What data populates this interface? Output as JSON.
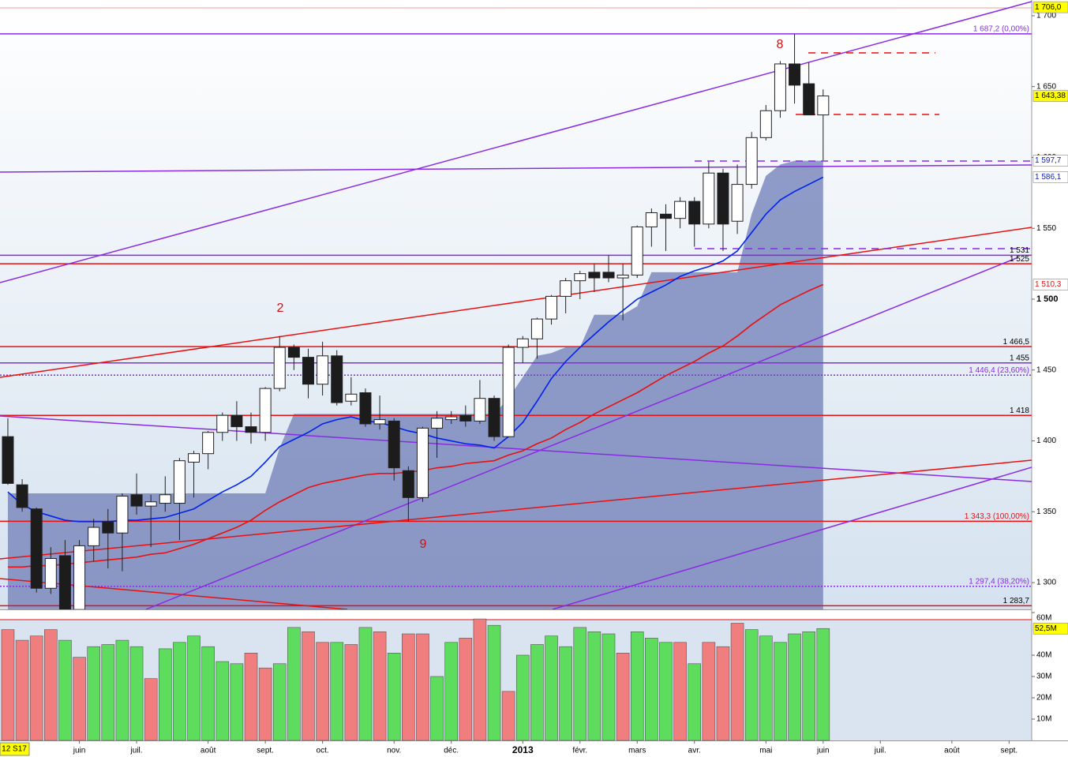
{
  "chart_data": [
    {
      "type": "candlestick",
      "categories": [
        null,
        null,
        null,
        null,
        null,
        null,
        null,
        null,
        null,
        null,
        null,
        null,
        null,
        null,
        null,
        null,
        null,
        null,
        null,
        null,
        null,
        null,
        null,
        null,
        null,
        null,
        null,
        null,
        null,
        null,
        null,
        null,
        null,
        null,
        null,
        null,
        null,
        null,
        null,
        null,
        null,
        null,
        null,
        null,
        null,
        null,
        null,
        null,
        null,
        null,
        null,
        null,
        null,
        null,
        null,
        null,
        null,
        null
      ],
      "open": [
        1403,
        1369,
        1352,
        1296,
        1319,
        1281,
        1326,
        1343,
        1335,
        1362,
        1354,
        1356,
        1356,
        1385,
        1391,
        1406,
        1418,
        1410,
        1406,
        1437,
        1466,
        1459,
        1440,
        1460,
        1428,
        1434,
        1412,
        1414,
        1379,
        1360,
        1409,
        1415,
        1418,
        1414,
        1430,
        1403,
        1466,
        1472,
        1486,
        1502,
        1513,
        1519,
        1519,
        1515,
        1517,
        1551,
        1560,
        1557,
        1569,
        1553,
        1589,
        1555,
        1581,
        1614,
        1633,
        1666,
        1652,
        1630
      ],
      "high": [
        1416,
        1373,
        1353,
        1325,
        1330,
        1330,
        1345,
        1352,
        1363,
        1377,
        1362,
        1375,
        1388,
        1393,
        1407,
        1420,
        1428,
        1420,
        1438,
        1474,
        1468,
        1465,
        1470,
        1464,
        1445,
        1437,
        1432,
        1416,
        1382,
        1410,
        1421,
        1421,
        1425,
        1443,
        1432,
        1468,
        1474,
        1487,
        1503,
        1515,
        1520,
        1525,
        1531,
        1525,
        1552,
        1564,
        1567,
        1572,
        1572,
        1597,
        1592,
        1595,
        1618,
        1637,
        1668,
        1687,
        1667,
        1648
      ],
      "low": [
        1369,
        1350,
        1293,
        1292,
        1281,
        1281,
        1315,
        1310,
        1308,
        1348,
        1325,
        1350,
        1330,
        1360,
        1380,
        1400,
        1400,
        1398,
        1400,
        1435,
        1450,
        1430,
        1432,
        1425,
        1425,
        1410,
        1408,
        1372,
        1343,
        1357,
        1388,
        1412,
        1410,
        1412,
        1400,
        1403,
        1455,
        1458,
        1482,
        1490,
        1500,
        1505,
        1512,
        1485,
        1515,
        1537,
        1534,
        1550,
        1537,
        1550,
        1534,
        1546,
        1578,
        1612,
        1628,
        1638,
        1630,
        1598
      ],
      "close": [
        1370,
        1353,
        1296,
        1317,
        1281,
        1326,
        1339,
        1335,
        1361,
        1354,
        1357,
        1362,
        1386,
        1391,
        1406,
        1418,
        1410,
        1406,
        1437,
        1466,
        1459,
        1440,
        1460,
        1427,
        1433,
        1412,
        1415,
        1381,
        1360,
        1409,
        1416,
        1417,
        1414,
        1430,
        1403,
        1466,
        1472,
        1486,
        1502,
        1513,
        1518,
        1515,
        1515,
        1517,
        1551,
        1561,
        1557,
        1569,
        1553,
        1589,
        1553,
        1581,
        1614,
        1633,
        1666,
        1651,
        1630,
        1643.38
      ],
      "up_color": "#ffffff",
      "down_color": "#1c1c1c",
      "stop": {
        "color": "#7d89bd",
        "values": [
          1363,
          1363,
          1363,
          1363,
          1363,
          1363,
          1363,
          1363,
          1363,
          1363,
          1363,
          1363,
          1363,
          1363,
          1363,
          1363,
          1363,
          1363,
          1363,
          1395,
          1419,
          1419,
          1419,
          1419,
          1419,
          1419,
          1419,
          1419,
          1419,
          1419,
          1419,
          1419,
          1419,
          1419,
          1419,
          1430,
          1445,
          1460,
          1462,
          1466,
          1466,
          1489,
          1489,
          1489,
          1495,
          1519,
          1519,
          1519,
          1519,
          1519,
          1519,
          1519,
          1560,
          1587,
          1595,
          1597.7,
          1597.7,
          1597.7
        ]
      },
      "lines": [
        {
          "color": "#0022ee",
          "values": [
            1364,
            1355,
            1350,
            1347,
            1344,
            1343,
            1343,
            1343,
            1344,
            1344,
            1345,
            1346,
            1349,
            1352,
            1358,
            1364,
            1369,
            1375,
            1385,
            1396,
            1401,
            1406,
            1412,
            1415,
            1417,
            1414,
            1413,
            1410,
            1407,
            1405,
            1402,
            1400,
            1398,
            1397,
            1395,
            1403,
            1413,
            1428,
            1444,
            1456,
            1466,
            1475,
            1484,
            1492,
            1500,
            1505,
            1510,
            1516,
            1520,
            1523,
            1527,
            1534,
            1547,
            1560,
            1570,
            1576,
            1581,
            1586.1
          ]
        },
        {
          "color": "#e81010",
          "values": [
            1311,
            1311,
            1312,
            1312,
            1313,
            1314,
            1315,
            1316,
            1317,
            1318,
            1320,
            1321,
            1324,
            1327,
            1331,
            1335,
            1339,
            1344,
            1351,
            1357,
            1362,
            1367,
            1370,
            1372,
            1374,
            1376,
            1377,
            1377,
            1378,
            1379,
            1381,
            1382,
            1384,
            1385,
            1386,
            1390,
            1393,
            1398,
            1402,
            1408,
            1413,
            1419,
            1424,
            1429,
            1434,
            1440,
            1446,
            1451,
            1456,
            1462,
            1467,
            1474,
            1482,
            1489,
            1496,
            1501,
            1506,
            1510.3
          ]
        }
      ],
      "levels": [
        {
          "value": 1687.2,
          "label": "1 687,2 (0,00%)",
          "color": "#8a2be2",
          "label_color": "#8a2be2",
          "style": "solid"
        },
        {
          "value": 1531,
          "label": "1 531",
          "color": "#8a2be2",
          "label_color": "#000000",
          "style": "solid"
        },
        {
          "value": 1525,
          "label": "1 525",
          "color": "#e81010",
          "label_color": "#000000",
          "style": "solid"
        },
        {
          "value": 1466.5,
          "label": "1 466,5",
          "color": "#e81010",
          "label_color": "#000000",
          "style": "solid"
        },
        {
          "value": 1455,
          "label": "1 455",
          "color": "#8a2be2",
          "label_color": "#000000",
          "style": "solid"
        },
        {
          "value": 1446.4,
          "label": "1 446,4 (23,60%)",
          "color": "#8a2be2",
          "label_color": "#8a2be2",
          "style": "dotted"
        },
        {
          "value": 1418,
          "label": "1 418",
          "color": "#e81010",
          "label_color": "#000000",
          "style": "solid"
        },
        {
          "value": 1343.3,
          "label": "1 343,3 (100,00%)",
          "color": "#e81010",
          "label_color": "#e81010",
          "style": "solid"
        },
        {
          "value": 1297.4,
          "label": "1 297,4 (38,20%)",
          "color": "#8a2be2",
          "label_color": "#8a2be2",
          "style": "dotted"
        },
        {
          "value": 1283.7,
          "label": "1 283,7",
          "color": "#e81010",
          "label_color": "#000000",
          "style": "solid"
        }
      ],
      "badges": [
        {
          "value": 1706,
          "label": "1 706,0",
          "fill": "#ffff00",
          "text_color": "#000000"
        },
        {
          "value": 1643.38,
          "label": "1 643,38",
          "fill": "#ffff00",
          "text_color": "#000000"
        },
        {
          "value": 1597.7,
          "label": "1 597,7",
          "fill": "#ffffff",
          "text_color": "#1020c0"
        },
        {
          "value": 1586.1,
          "label": "1 586,1",
          "fill": "#ffffff",
          "text_color": "#1020c0"
        },
        {
          "value": 1510.3,
          "label": "1 510,3",
          "fill": "#ffffff",
          "text_color": "#e81010"
        }
      ],
      "xlim": [
        -0.55,
        71.58
      ],
      "xticks": [
        {
          "value": 5,
          "label": "juin"
        },
        {
          "value": 9,
          "label": "juil."
        },
        {
          "value": 14,
          "label": "août"
        },
        {
          "value": 18,
          "label": "sept."
        },
        {
          "value": 22,
          "label": "oct."
        },
        {
          "value": 27,
          "label": "nov."
        },
        {
          "value": 31,
          "label": "déc."
        },
        {
          "value": 36,
          "label": "2013",
          "bold": true
        },
        {
          "value": 40,
          "label": "févr."
        },
        {
          "value": 44,
          "label": "mars"
        },
        {
          "value": 48,
          "label": "avr."
        },
        {
          "value": 53,
          "label": "mai"
        },
        {
          "value": 57,
          "label": "juin"
        },
        {
          "value": 61,
          "label": "juil."
        },
        {
          "value": 66,
          "label": "août"
        },
        {
          "value": 70,
          "label": "sept."
        }
      ],
      "ylim": [
        1281.1,
        1711.1
      ],
      "yticks": [
        {
          "value": 1300,
          "label": "1 300"
        },
        {
          "value": 1350,
          "label": "1 350"
        },
        {
          "value": 1400,
          "label": "1 400"
        },
        {
          "value": 1450,
          "label": "1 450"
        },
        {
          "value": 1500,
          "label": "1 500",
          "bold": true
        },
        {
          "value": 1550,
          "label": "1 550"
        },
        {
          "value": 1600,
          "label": "1 600"
        },
        {
          "value": 1650,
          "label": "1 650"
        },
        {
          "value": 1700,
          "label": "1 700"
        }
      ],
      "annotations": [
        "8",
        "2",
        "9"
      ],
      "period_label": "12 S17"
    },
    {
      "type": "bar",
      "values": [
        52,
        47,
        49,
        52,
        47,
        39,
        44,
        45,
        47,
        44,
        29,
        43,
        46,
        49,
        44,
        37,
        36,
        41,
        34,
        36,
        53,
        51,
        46,
        46,
        45,
        53,
        51,
        41,
        50,
        50,
        30,
        46,
        48,
        57,
        54,
        23,
        40,
        45,
        49,
        44,
        53,
        51,
        50,
        41,
        51,
        48,
        46,
        46,
        36,
        46,
        44,
        55,
        52,
        49,
        46,
        50,
        51,
        52.5
      ],
      "colors": [
        "#f07e7e",
        "#f07e7e",
        "#f07e7e",
        "#f07e7e",
        "#5ddc5d",
        "#f07e7e",
        "#5ddc5d",
        "#5ddc5d",
        "#5ddc5d",
        "#5ddc5d",
        "#f07e7e",
        "#5ddc5d",
        "#5ddc5d",
        "#5ddc5d",
        "#5ddc5d",
        "#5ddc5d",
        "#5ddc5d",
        "#f07e7e",
        "#f07e7e",
        "#5ddc5d",
        "#5ddc5d",
        "#f07e7e",
        "#f07e7e",
        "#5ddc5d",
        "#f07e7e",
        "#5ddc5d",
        "#f07e7e",
        "#5ddc5d",
        "#f07e7e",
        "#f07e7e",
        "#5ddc5d",
        "#5ddc5d",
        "#f07e7e",
        "#f07e7e",
        "#5ddc5d",
        "#f07e7e",
        "#5ddc5d",
        "#5ddc5d",
        "#5ddc5d",
        "#5ddc5d",
        "#5ddc5d",
        "#5ddc5d",
        "#5ddc5d",
        "#f07e7e",
        "#5ddc5d",
        "#5ddc5d",
        "#5ddc5d",
        "#f07e7e",
        "#5ddc5d",
        "#f07e7e",
        "#f07e7e",
        "#f07e7e",
        "#5ddc5d",
        "#5ddc5d",
        "#5ddc5d",
        "#5ddc5d",
        "#5ddc5d",
        "#5ddc5d"
      ],
      "ylim": [
        0,
        60
      ],
      "yticks": [
        {
          "value": 10,
          "label": "10M"
        },
        {
          "value": 20,
          "label": "20M"
        },
        {
          "value": 30,
          "label": "30M"
        },
        {
          "value": 40,
          "label": "40M"
        },
        {
          "value": 60,
          "label": "60M"
        }
      ],
      "badges": [
        {
          "value": 52.5,
          "label": "52,5M",
          "fill": "#ffff00",
          "text_color": "#000000"
        }
      ]
    }
  ]
}
